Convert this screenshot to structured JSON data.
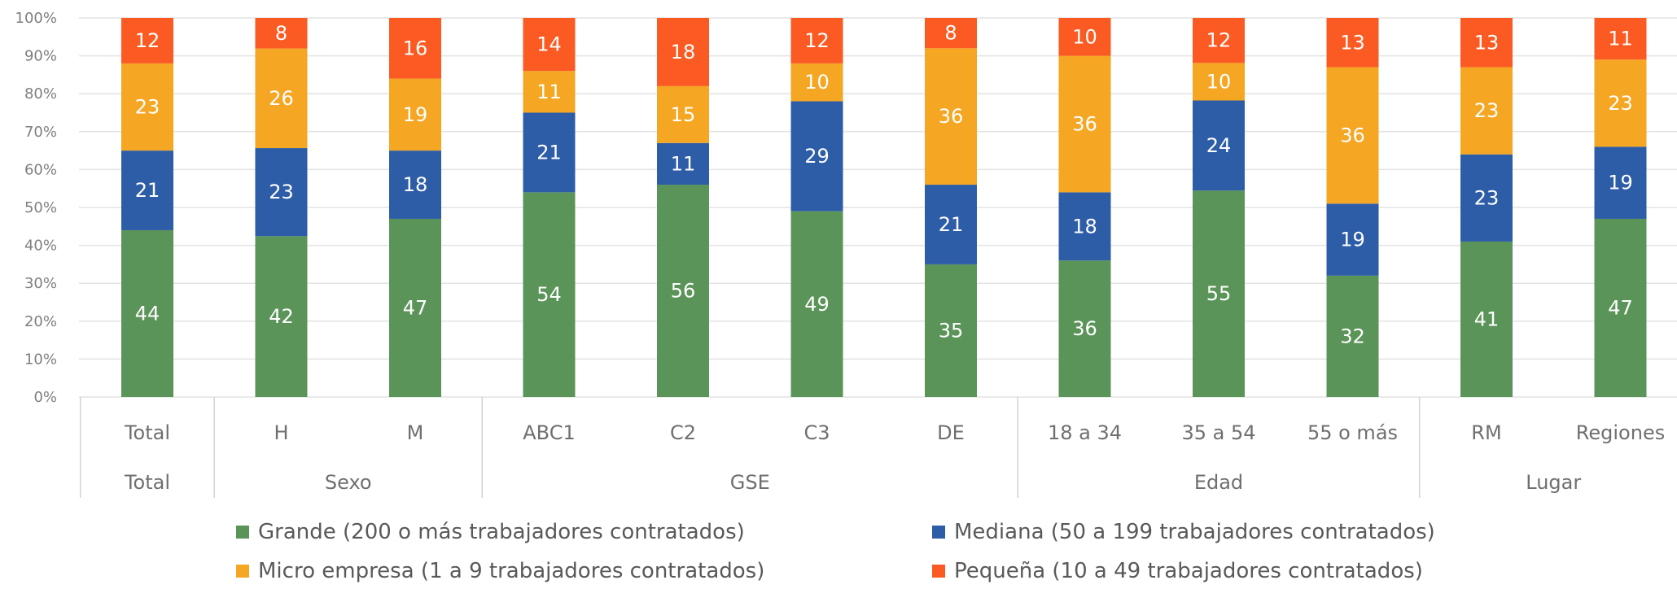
{
  "chart_data": {
    "type": "bar",
    "stacked": true,
    "percent": true,
    "categories": [
      "Total",
      "H",
      "M",
      "ABC1",
      "C2",
      "C3",
      "DE",
      "18 a 34",
      "35 a 54",
      "55 o más",
      "RM",
      "Regiones"
    ],
    "groups": [
      {
        "label": "Total",
        "categories": [
          "Total"
        ]
      },
      {
        "label": "Sexo",
        "categories": [
          "H",
          "M"
        ]
      },
      {
        "label": "GSE",
        "categories": [
          "ABC1",
          "C2",
          "C3",
          "DE"
        ]
      },
      {
        "label": "Edad",
        "categories": [
          "18 a 34",
          "35 a 54",
          "55 o más"
        ]
      },
      {
        "label": "Lugar",
        "categories": [
          "RM",
          "Regiones"
        ]
      }
    ],
    "series": [
      {
        "name": "Grande (200 o más trabajadores contratados)",
        "color": "#5b9459",
        "values": [
          44,
          42,
          47,
          54,
          56,
          49,
          35,
          36,
          55,
          32,
          41,
          47
        ]
      },
      {
        "name": "Mediana (50 a 199 trabajadores contratados)",
        "color": "#2e5da8",
        "values": [
          21,
          23,
          18,
          21,
          11,
          29,
          21,
          18,
          24,
          19,
          23,
          19
        ]
      },
      {
        "name": "Micro empresa (1 a 9 trabajadores contratados)",
        "color": "#f5a623",
        "values": [
          23,
          26,
          19,
          11,
          15,
          10,
          36,
          36,
          10,
          36,
          23,
          23
        ]
      },
      {
        "name": "Pequeña (10 a 49 trabajadores contratados)",
        "color": "#fb5a23",
        "values": [
          12,
          8,
          16,
          14,
          18,
          12,
          8,
          10,
          12,
          13,
          13,
          11
        ]
      }
    ],
    "ylim": [
      0,
      100
    ],
    "yticks": [
      "0%",
      "10%",
      "20%",
      "30%",
      "40%",
      "50%",
      "60%",
      "70%",
      "80%",
      "90%",
      "100%"
    ],
    "grid": true,
    "legend_position": "bottom",
    "legend_order": [
      0,
      1,
      2,
      3
    ]
  }
}
